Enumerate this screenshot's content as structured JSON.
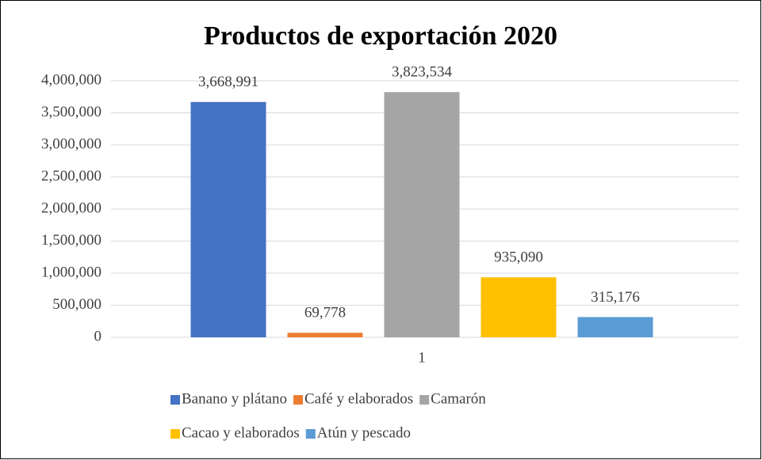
{
  "chart_data": {
    "type": "bar",
    "title": "Productos de exportación 2020",
    "categories": [
      "1"
    ],
    "series": [
      {
        "name": "Banano y plátano",
        "color": "#4472c4",
        "values": [
          3668991
        ],
        "value_labels": [
          "3,668,991"
        ]
      },
      {
        "name": "Café y elaborados",
        "color": "#ed7d31",
        "values": [
          69778
        ],
        "value_labels": [
          "69,778"
        ]
      },
      {
        "name": "Camarón",
        "color": "#a5a5a5",
        "values": [
          3823534
        ],
        "value_labels": [
          "3,823,534"
        ]
      },
      {
        "name": "Cacao y elaborados",
        "color": "#ffc000",
        "values": [
          935090
        ],
        "value_labels": [
          "935,090"
        ]
      },
      {
        "name": "Atún y pescado",
        "color": "#5b9bd5",
        "values": [
          315176
        ],
        "value_labels": [
          "315,176"
        ]
      }
    ],
    "ylim": [
      0,
      4000000
    ],
    "yticks": [
      0,
      {
        "value": 500000,
        "label": "500,000"
      },
      {
        "value": 1000000,
        "label": "1,000,000"
      },
      {
        "value": 1500000,
        "label": "1,500,000"
      },
      {
        "value": 2000000,
        "label": "2,000,000"
      },
      {
        "value": 2500000,
        "label": "2,500,000"
      },
      {
        "value": 3000000,
        "label": "3,000,000"
      },
      {
        "value": 3500000,
        "label": "3,500,000"
      },
      {
        "value": 4000000,
        "label": "4,000,000"
      }
    ],
    "grid": true,
    "legend": "bottom"
  }
}
